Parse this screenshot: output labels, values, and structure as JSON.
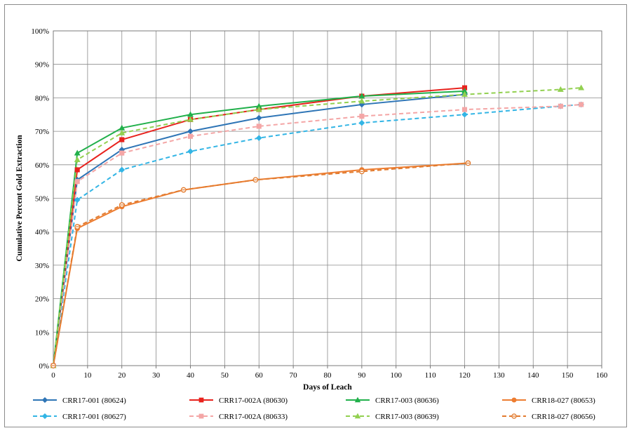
{
  "chart_data": {
    "type": "line",
    "xlabel": "Days of Leach",
    "ylabel": "Cumulative Percent Gold Extraction",
    "xlim": [
      0,
      160
    ],
    "ylim": [
      0,
      100
    ],
    "xticks": [
      "0",
      "10",
      "20",
      "30",
      "40",
      "50",
      "60",
      "70",
      "80",
      "90",
      "100",
      "110",
      "120",
      "130",
      "140",
      "150",
      "160"
    ],
    "yticks": [
      "0%",
      "10%",
      "20%",
      "30%",
      "40%",
      "50%",
      "60%",
      "70%",
      "80%",
      "90%",
      "100%"
    ],
    "grid": true,
    "legend_position": "bottom",
    "series": [
      {
        "name": "CRR17-001 (80624)",
        "color": "#2e75b6",
        "dash": "solid",
        "marker": "diamond",
        "x": [
          0,
          7,
          20,
          40,
          60,
          90,
          120
        ],
        "y": [
          0,
          55.5,
          64.5,
          70,
          74,
          78,
          81
        ]
      },
      {
        "name": "CRR17-002A (80630)",
        "color": "#e8221d",
        "dash": "solid",
        "marker": "square",
        "x": [
          0,
          7,
          20,
          40,
          60,
          90,
          120
        ],
        "y": [
          0,
          58.5,
          67.5,
          73.5,
          76.5,
          80.5,
          83
        ]
      },
      {
        "name": "CRR17-003 (80636)",
        "color": "#21b04b",
        "dash": "solid",
        "marker": "triangle",
        "x": [
          0,
          7,
          20,
          40,
          60,
          90,
          120
        ],
        "y": [
          0,
          63.5,
          71,
          75,
          77.5,
          80.5,
          82
        ]
      },
      {
        "name": "CRR18-027 (80653)",
        "color": "#ed7d31",
        "dash": "solid",
        "marker": "circle",
        "x": [
          0,
          7,
          20,
          38,
          59,
          90,
          121
        ],
        "y": [
          0,
          41,
          47.5,
          52.5,
          55.5,
          58.5,
          60.5
        ]
      },
      {
        "name": "CRR17-001 (80627)",
        "color": "#33b5e5",
        "dash": "dashed",
        "marker": "diamond",
        "x": [
          0,
          7,
          20,
          40,
          60,
          90,
          120,
          148,
          154
        ],
        "y": [
          0,
          49.5,
          58.5,
          64,
          68,
          72.5,
          75,
          77.5,
          78
        ]
      },
      {
        "name": "CRR17-002A (80633)",
        "color": "#f4a6a6",
        "dash": "dashed",
        "marker": "square",
        "x": [
          0,
          7,
          20,
          40,
          60,
          90,
          120,
          148,
          154
        ],
        "y": [
          0,
          55,
          63.5,
          68.5,
          71.5,
          74.5,
          76.5,
          77.5,
          78
        ]
      },
      {
        "name": "CRR17-003 (80639)",
        "color": "#92d050",
        "dash": "dashed",
        "marker": "triangle",
        "x": [
          0,
          7,
          20,
          40,
          60,
          90,
          120,
          148,
          154
        ],
        "y": [
          0,
          61.5,
          69.5,
          73.5,
          76.5,
          79,
          81,
          82.5,
          83
        ]
      },
      {
        "name": "CRR18-027 (80656)",
        "color": "#e27b2e",
        "dash": "dashed",
        "marker": "circle-open",
        "x": [
          0,
          7,
          20,
          38,
          59,
          90,
          121
        ],
        "y": [
          0,
          41.5,
          48,
          52.5,
          55.5,
          58,
          60.5
        ]
      }
    ]
  }
}
